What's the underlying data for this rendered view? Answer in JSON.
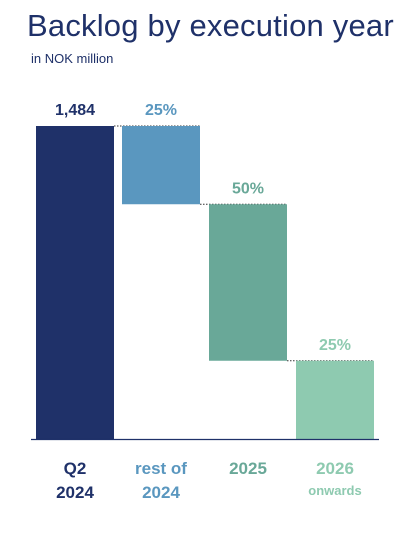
{
  "header": {
    "title": "Backlog by execution year",
    "subtitle": "in NOK million"
  },
  "chart_data": {
    "type": "bar",
    "subtype": "waterfall",
    "title": "Backlog by execution year",
    "subtitle": "in NOK million",
    "total": 1484,
    "categories": [
      {
        "line1": "Q2",
        "line2": "2024"
      },
      {
        "line1": "rest of",
        "line2": "2024"
      },
      {
        "line1": "2025",
        "line2": ""
      },
      {
        "line1": "2026",
        "line2": "onwards"
      }
    ],
    "values": [
      1484,
      371,
      742,
      371
    ],
    "labels": [
      "1,484",
      "25%",
      "50%",
      "25%"
    ],
    "colors": [
      "#1f3169",
      "#5a97bf",
      "#69a898",
      "#8ecab0"
    ],
    "ylim": [
      0,
      1484
    ],
    "grid": false
  }
}
